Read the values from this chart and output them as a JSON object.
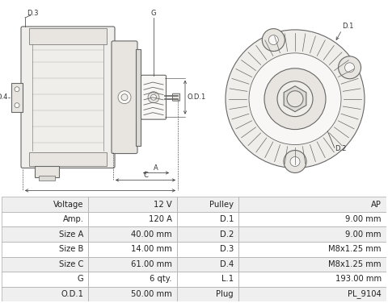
{
  "table_rows": [
    [
      "Voltage",
      "12 V",
      "Pulley",
      "AP"
    ],
    [
      "Amp.",
      "120 A",
      "D.1",
      "9.00 mm"
    ],
    [
      "Size A",
      "40.00 mm",
      "D.2",
      "9.00 mm"
    ],
    [
      "Size B",
      "14.00 mm",
      "D.3",
      "M8x1.25 mm"
    ],
    [
      "Size C",
      "61.00 mm",
      "D.4",
      "M8x1.25 mm"
    ],
    [
      "G",
      "6 qty.",
      "L.1",
      "193.00 mm"
    ],
    [
      "O.D.1",
      "50.00 mm",
      "Plug",
      "PL_9104"
    ]
  ],
  "border_color": "#aaaaaa",
  "row_bg_even": "#efefef",
  "row_bg_odd": "#ffffff",
  "text_color": "#222222",
  "font_size": 7.2,
  "line_color": "#666666",
  "label_color": "#333333",
  "bg_color": "#ffffff"
}
